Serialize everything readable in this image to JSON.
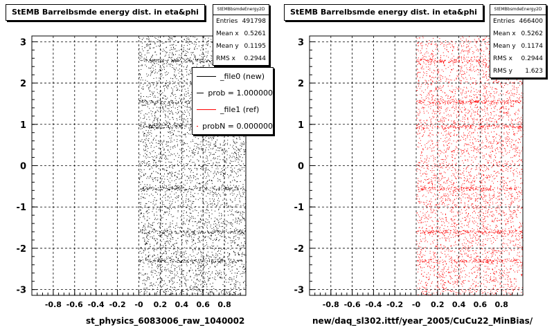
{
  "chart_data": [
    {
      "type": "scatter",
      "title": "StEMB Barrelbsmde energy dist. in eta&phi",
      "xlabel": "st_physics_6083006_raw_1040002",
      "ylabel": "",
      "xlim": [
        -1.0,
        1.0
      ],
      "ylim": [
        -3.14,
        3.14
      ],
      "x_ticks": [
        "-0.8",
        "-0.6",
        "-0.4",
        "-0.2",
        "-0",
        "0.2",
        "0.4",
        "0.6",
        "0.8"
      ],
      "y_ticks": [
        "-3",
        "-2",
        "-1",
        "0",
        "1",
        "2",
        "3"
      ],
      "grid": true,
      "marker_color": "#000000",
      "x_data_range": [
        0.0,
        1.0
      ],
      "y_data_range": [
        -3.14,
        3.14
      ],
      "stats": {
        "name": "StEMBbsmdeEnergy2D",
        "rows": [
          {
            "label": "Entries",
            "value": "491798"
          },
          {
            "label": "Mean x",
            "value": "0.5261"
          },
          {
            "label": "Mean y",
            "value": "0.1195"
          },
          {
            "label": "RMS x",
            "value": "0.2944"
          }
        ]
      },
      "legend": [
        {
          "label": "_file0 (new)",
          "color": "#000000"
        },
        {
          "label": "prob = 1.000000",
          "color": "#000000"
        },
        {
          "label": "_file1 (ref)",
          "color": "#ff0000"
        },
        {
          "label": "probN = 0.000000",
          "color": "#ff0000"
        }
      ]
    },
    {
      "type": "scatter",
      "title": "StEMB Barrelbsmde energy dist. in eta&phi",
      "xlabel": "new/daq_sl302.ittf/year_2005/CuCu22_MinBias/",
      "ylabel": "",
      "xlim": [
        -1.0,
        1.0
      ],
      "ylim": [
        -3.14,
        3.14
      ],
      "x_ticks": [
        "-0.8",
        "-0.6",
        "-0.4",
        "-0.2",
        "-0",
        "0.2",
        "0.4",
        "0.6",
        "0.8"
      ],
      "y_ticks": [
        "-3",
        "-2",
        "-1",
        "0",
        "1",
        "2",
        "3"
      ],
      "grid": true,
      "marker_color": "#ff0000",
      "x_data_range": [
        0.0,
        1.0
      ],
      "y_data_range": [
        -3.14,
        3.14
      ],
      "stats": {
        "name": "StEMBbsmdeEnergy2D",
        "rows": [
          {
            "label": "Entries",
            "value": "466400"
          },
          {
            "label": "Mean x",
            "value": "0.5262"
          },
          {
            "label": "Mean y",
            "value": "0.1174"
          },
          {
            "label": "RMS x",
            "value": "0.2944"
          },
          {
            "label": "RMS y",
            "value": "1.623"
          }
        ]
      }
    }
  ]
}
